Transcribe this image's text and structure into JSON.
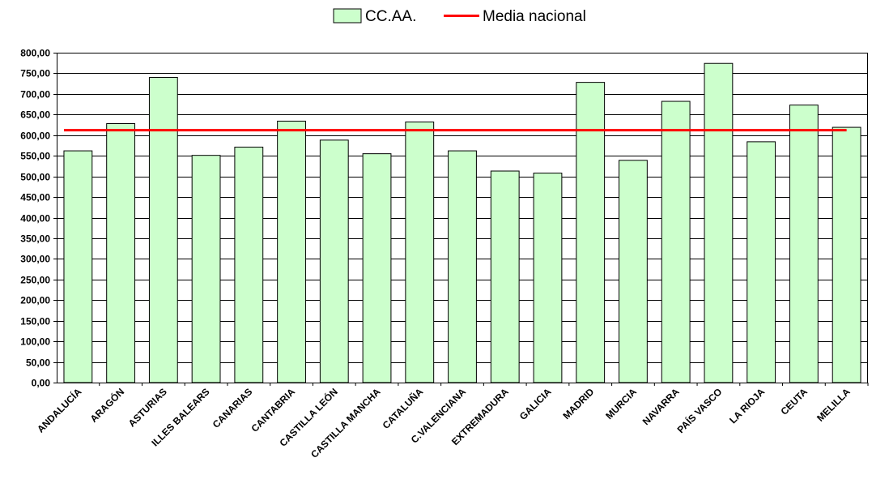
{
  "chart_data": {
    "type": "bar",
    "categories": [
      "ANDALUCÍA",
      "ARAGÓN",
      "ASTURIAS",
      "ILLES BALEARS",
      "CANARIAS",
      "CANTABRIA",
      "CASTILLA LEÓN",
      "CASTILLA MANCHA",
      "CATALUÑA",
      "C.VALENCIANA",
      "EXTREMADURA",
      "GALICIA",
      "MADRID",
      "MURCIA",
      "NAVARRA",
      "PAÍS VASCO",
      "LA RIOJA",
      "CEUTA",
      "MELILLA"
    ],
    "series": [
      {
        "name": "CC.AA.",
        "type": "bar",
        "color": "#ccffcc",
        "values": [
          562,
          628,
          740,
          551,
          571,
          634,
          588,
          555,
          632,
          562,
          513,
          508,
          728,
          539,
          682,
          774,
          584,
          673,
          619
        ]
      },
      {
        "name": "Media nacional",
        "type": "line",
        "color": "#ff0000",
        "values": [
          612,
          612,
          612,
          612,
          612,
          612,
          612,
          612,
          612,
          612,
          612,
          612,
          612,
          612,
          612,
          612,
          612,
          612,
          612
        ]
      }
    ],
    "ylim": [
      0,
      800
    ],
    "yticks": [
      "0,00",
      "50,00",
      "100,00",
      "150,00",
      "200,00",
      "250,00",
      "300,00",
      "350,00",
      "400,00",
      "450,00",
      "500,00",
      "550,00",
      "600,00",
      "650,00",
      "700,00",
      "750,00",
      "800,00"
    ],
    "grid": true,
    "legend_position": "top-center"
  }
}
